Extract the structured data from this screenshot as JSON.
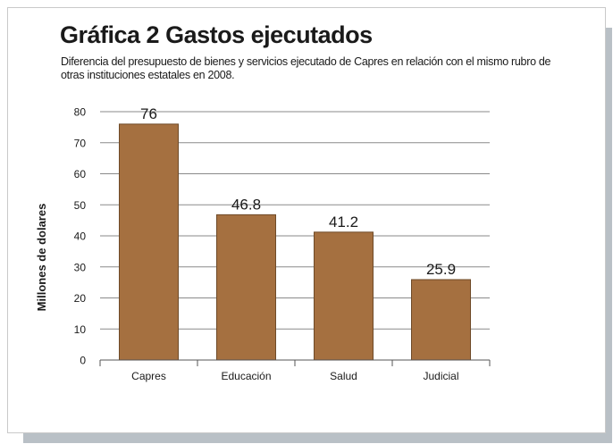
{
  "colors": {
    "bar_fill": "#a57040",
    "bar_stroke": "#6e4a28",
    "gridline": "#8a8a8a",
    "text": "#1a1a1a"
  },
  "chart_data": {
    "type": "bar",
    "title": "Gráfica 2 Gastos ejecutados",
    "subtitle": "Diferencia del presupuesto de bienes y servicios ejecutado de Capres en relación con el mismo rubro de otras instituciones estatales en 2008.",
    "xlabel": "",
    "ylabel": "Millones de dolares",
    "categories": [
      "Capres",
      "Educación",
      "Salud",
      "Judicial"
    ],
    "values": [
      76,
      46.8,
      41.2,
      25.9
    ],
    "value_labels": [
      "76",
      "46.8",
      "41.2",
      "25.9"
    ],
    "ylim": [
      0,
      80
    ],
    "yticks": [
      0,
      10,
      20,
      30,
      40,
      50,
      60,
      70,
      80
    ],
    "grid": true,
    "legend": "none"
  }
}
